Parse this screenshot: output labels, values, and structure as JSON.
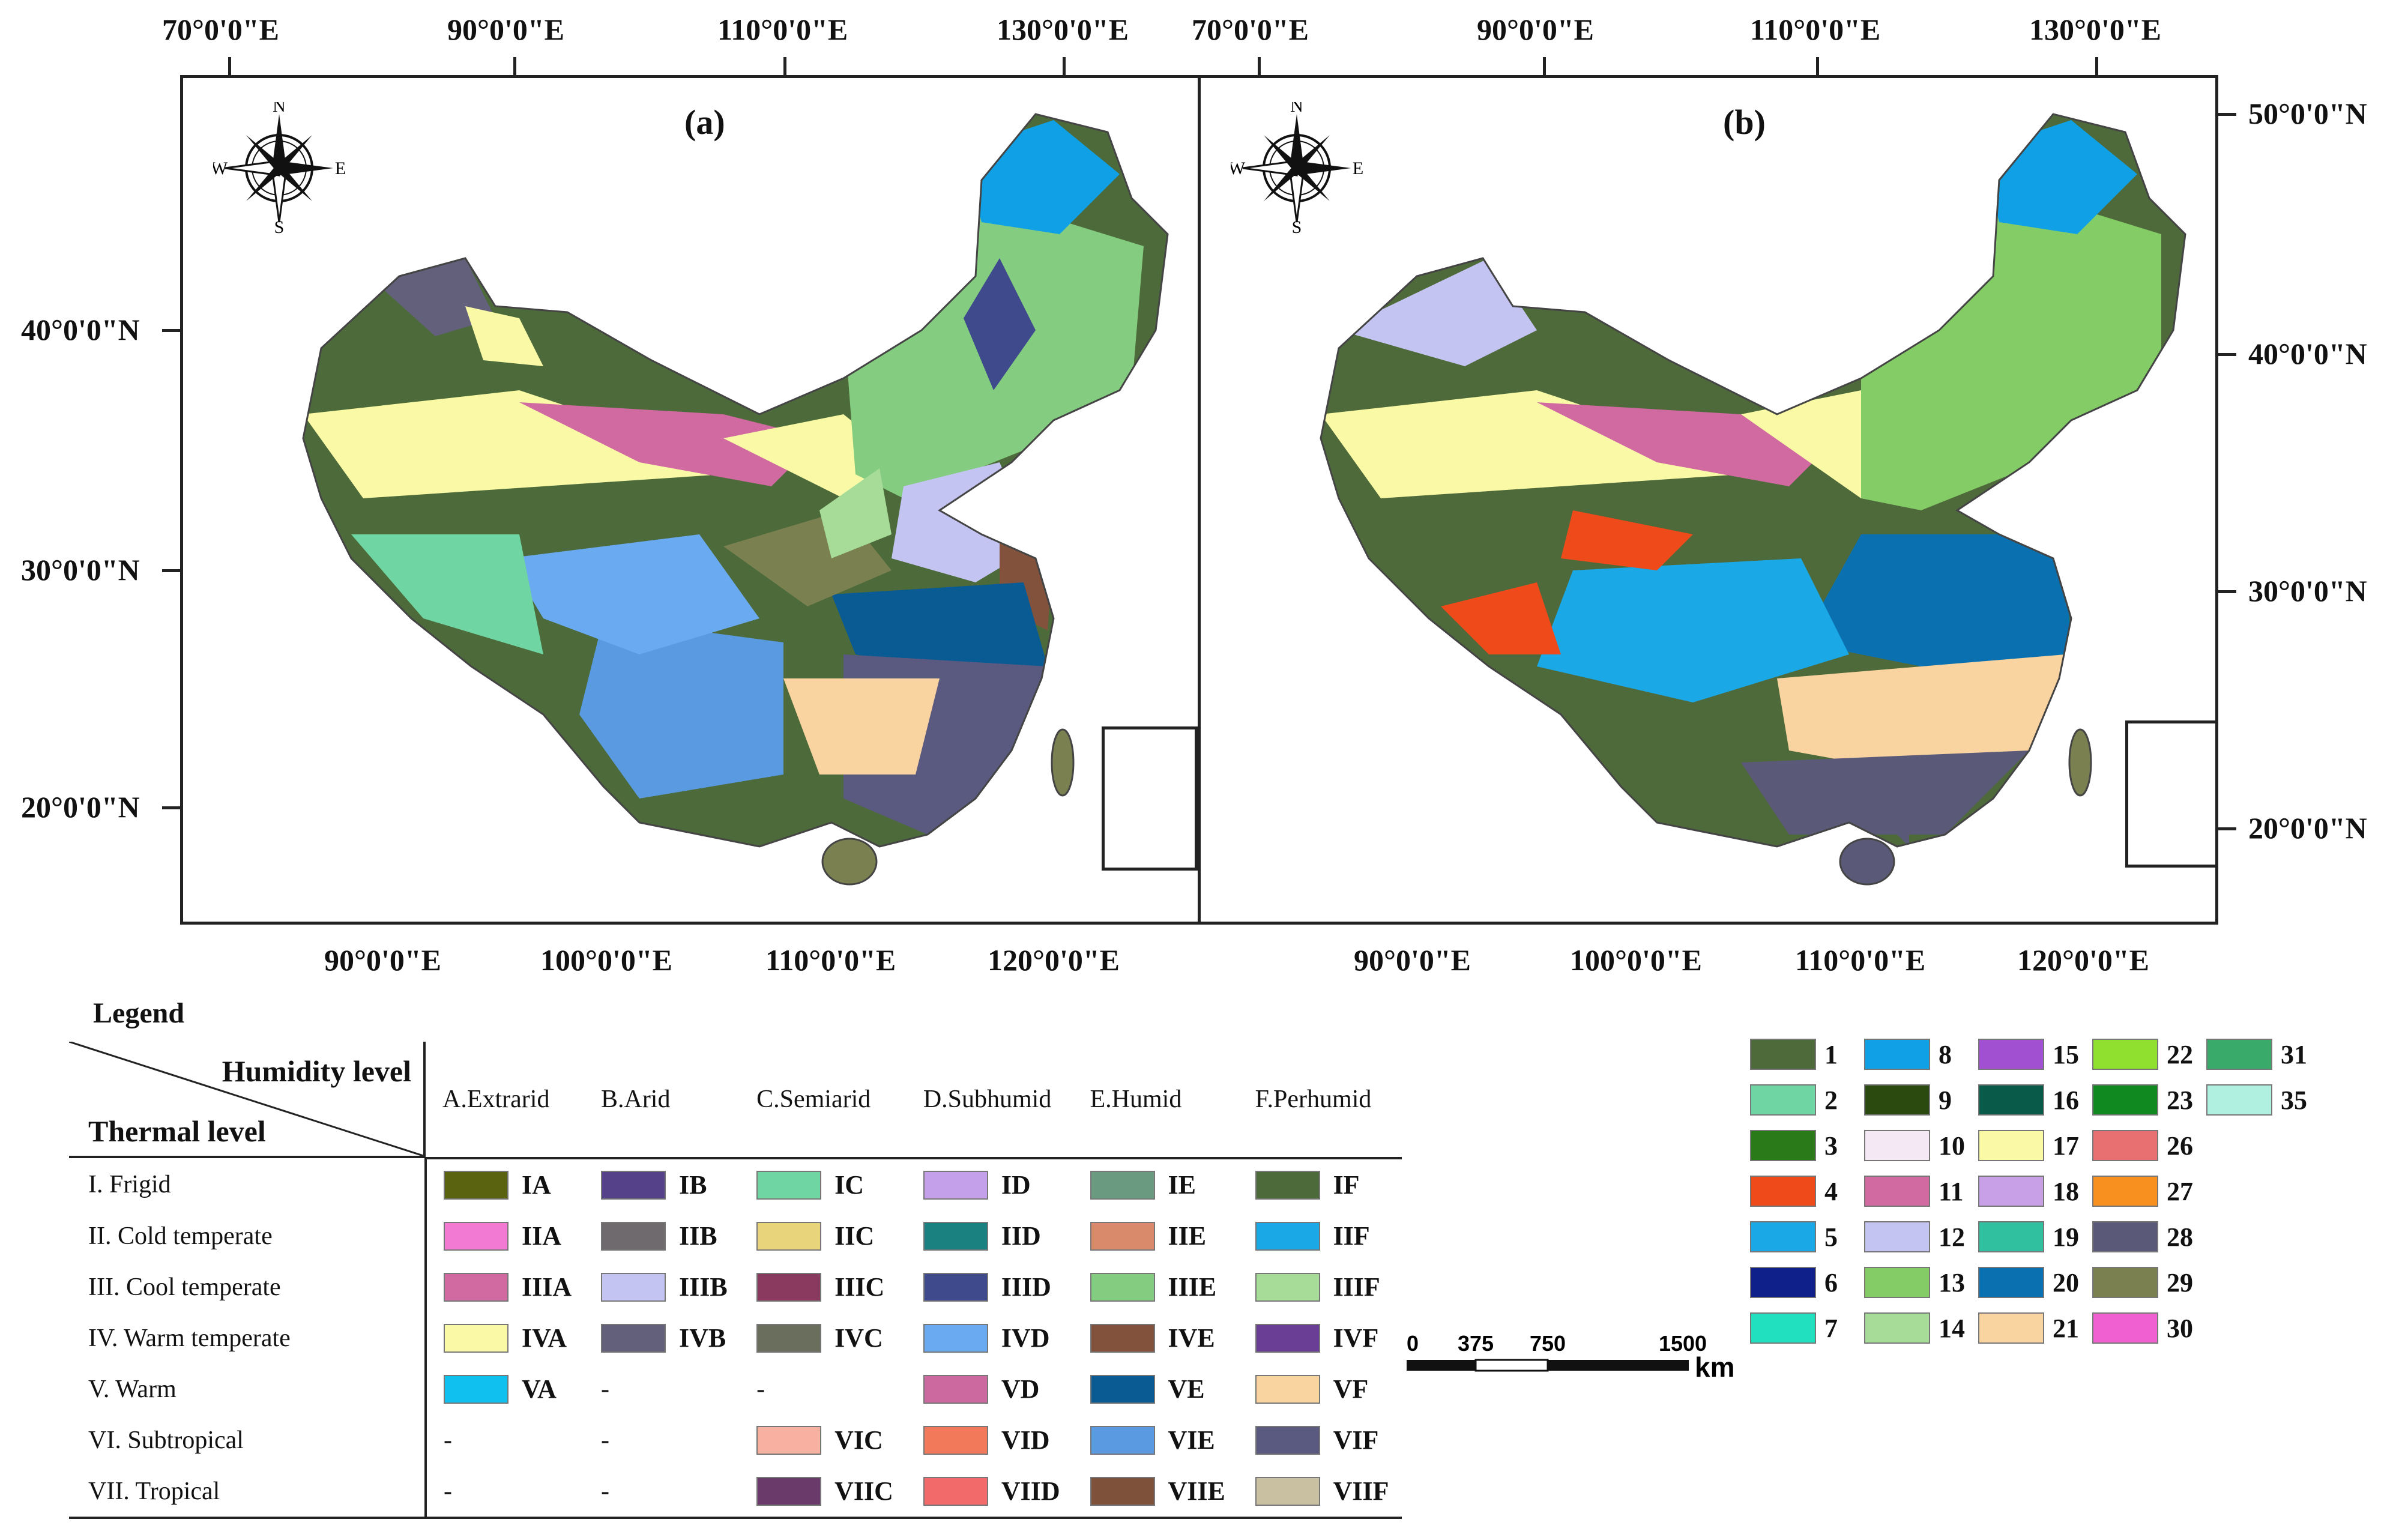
{
  "panels": [
    {
      "id": "a",
      "label": "(a)"
    },
    {
      "id": "b",
      "label": "(b)"
    }
  ],
  "compass": {
    "n": "N",
    "s": "S",
    "e": "E",
    "w": "W"
  },
  "axes": {
    "top_lon_a": [
      "70°0'0\"E",
      "90°0'0\"E",
      "110°0'0\"E",
      "130°0'0\"E"
    ],
    "top_lon_b": [
      "70°0'0\"E",
      "90°0'0\"E",
      "110°0'0\"E",
      "130°0'0\"E"
    ],
    "bottom_lon_a": [
      "90°0'0\"E",
      "100°0'0\"E",
      "110°0'0\"E",
      "120°0'0\"E"
    ],
    "bottom_lon_b": [
      "90°0'0\"E",
      "100°0'0\"E",
      "110°0'0\"E",
      "120°0'0\"E"
    ],
    "left_lat": [
      "40°0'0\"N",
      "30°0'0\"N",
      "20°0'0\"N"
    ],
    "right_lat": [
      "50°0'0\"N",
      "40°0'0\"N",
      "30°0'0\"N",
      "20°0'0\"N"
    ]
  },
  "legend": {
    "title": "Legend",
    "humidity_title": "Humidity level",
    "thermal_title": "Thermal level",
    "humidity_levels": [
      "A.Extrarid",
      "B.Arid",
      "C.Semiarid",
      "D.Subhumid",
      "E.Humid",
      "F.Perhumid"
    ],
    "rows": [
      {
        "label": "I. Frigid",
        "cells": [
          {
            "code": "IA",
            "color": "#5a6410"
          },
          {
            "code": "IB",
            "color": "#55408a"
          },
          {
            "code": "IC",
            "color": "#6fd5a2"
          },
          {
            "code": "ID",
            "color": "#c4a0ea"
          },
          {
            "code": "IE",
            "color": "#6a9a80"
          },
          {
            "code": "IF",
            "color": "#4d6a3a"
          }
        ]
      },
      {
        "label": "II. Cold temperate",
        "cells": [
          {
            "code": "IIA",
            "color": "#f27ad2"
          },
          {
            "code": "IIB",
            "color": "#6e6a6e"
          },
          {
            "code": "IIC",
            "color": "#e8d47a"
          },
          {
            "code": "IID",
            "color": "#1a8080"
          },
          {
            "code": "IIE",
            "color": "#d98a6a"
          },
          {
            "code": "IIF",
            "color": "#1aa8e6"
          }
        ]
      },
      {
        "label": "III. Cool temperate",
        "cells": [
          {
            "code": "IIIA",
            "color": "#d06aa0"
          },
          {
            "code": "IIIB",
            "color": "#c4c4f2"
          },
          {
            "code": "IIIC",
            "color": "#8a3a5e"
          },
          {
            "code": "IIID",
            "color": "#3e4a8c"
          },
          {
            "code": "IIIE",
            "color": "#84cc80"
          },
          {
            "code": "IIIF",
            "color": "#a6dc98"
          }
        ]
      },
      {
        "label": "IV. Warm temperate",
        "cells": [
          {
            "code": "IVA",
            "color": "#fafaa6"
          },
          {
            "code": "IVB",
            "color": "#62607a"
          },
          {
            "code": "IVC",
            "color": "#6a6e5c"
          },
          {
            "code": "IVD",
            "color": "#6aaaf0"
          },
          {
            "code": "IVE",
            "color": "#82523c"
          },
          {
            "code": "IVF",
            "color": "#6a3e94"
          }
        ]
      },
      {
        "label": "V. Warm",
        "cells": [
          {
            "code": "VA",
            "color": "#10c0ee"
          },
          null,
          null,
          {
            "code": "VD",
            "color": "#cc6aa0"
          },
          {
            "code": "VE",
            "color": "#0a5a94"
          },
          {
            "code": "VF",
            "color": "#fad4a0"
          }
        ]
      },
      {
        "label": "VI. Subtropical",
        "cells": [
          null,
          null,
          {
            "code": "VIC",
            "color": "#f8b0a0"
          },
          {
            "code": "VID",
            "color": "#f27a5a"
          },
          {
            "code": "VIE",
            "color": "#5a9ae0"
          },
          {
            "code": "VIF",
            "color": "#5a5a80"
          }
        ]
      },
      {
        "label": "VII. Tropical",
        "cells": [
          null,
          null,
          {
            "code": "VIIC",
            "color": "#6a3a6a"
          },
          {
            "code": "VIID",
            "color": "#f26a6a"
          },
          {
            "code": "VIIE",
            "color": "#7e523a"
          },
          {
            "code": "VIIF",
            "color": "#c8c0a0"
          }
        ]
      }
    ],
    "dash": "-"
  },
  "number_legend": [
    {
      "n": "1",
      "color": "#4e6a3a"
    },
    {
      "n": "2",
      "color": "#6fd5a2"
    },
    {
      "n": "3",
      "color": "#2a7a1a"
    },
    {
      "n": "4",
      "color": "#ee4a1a"
    },
    {
      "n": "5",
      "color": "#1aa8e6"
    },
    {
      "n": "6",
      "color": "#10208a"
    },
    {
      "n": "7",
      "color": "#20e0c0"
    },
    {
      "n": "8",
      "color": "#10a0e6"
    },
    {
      "n": "9",
      "color": "#2a4a10"
    },
    {
      "n": "10",
      "color": "#f4e8f4"
    },
    {
      "n": "11",
      "color": "#d06aa0"
    },
    {
      "n": "12",
      "color": "#c4c4f2"
    },
    {
      "n": "13",
      "color": "#84cc66"
    },
    {
      "n": "14",
      "color": "#a6dc98"
    },
    {
      "n": "15",
      "color": "#a050d0"
    },
    {
      "n": "16",
      "color": "#0a5a4a"
    },
    {
      "n": "17",
      "color": "#fafaa6"
    },
    {
      "n": "18",
      "color": "#c8a0e8"
    },
    {
      "n": "19",
      "color": "#30c0a0"
    },
    {
      "n": "20",
      "color": "#0a70b0"
    },
    {
      "n": "21",
      "color": "#fad4a0"
    },
    {
      "n": "22",
      "color": "#90e030"
    },
    {
      "n": "23",
      "color": "#108a20"
    },
    {
      "n": "26",
      "color": "#e87070"
    },
    {
      "n": "27",
      "color": "#f89020"
    },
    {
      "n": "28",
      "color": "#5a5a78"
    },
    {
      "n": "29",
      "color": "#7a8050"
    },
    {
      "n": "30",
      "color": "#f060d0"
    },
    {
      "n": "31",
      "color": "#3aaa6a"
    },
    {
      "n": "35",
      "color": "#b0f0e0"
    }
  ],
  "scale": {
    "ticks": [
      "0",
      "375",
      "750",
      "1500"
    ],
    "unit": "km"
  }
}
